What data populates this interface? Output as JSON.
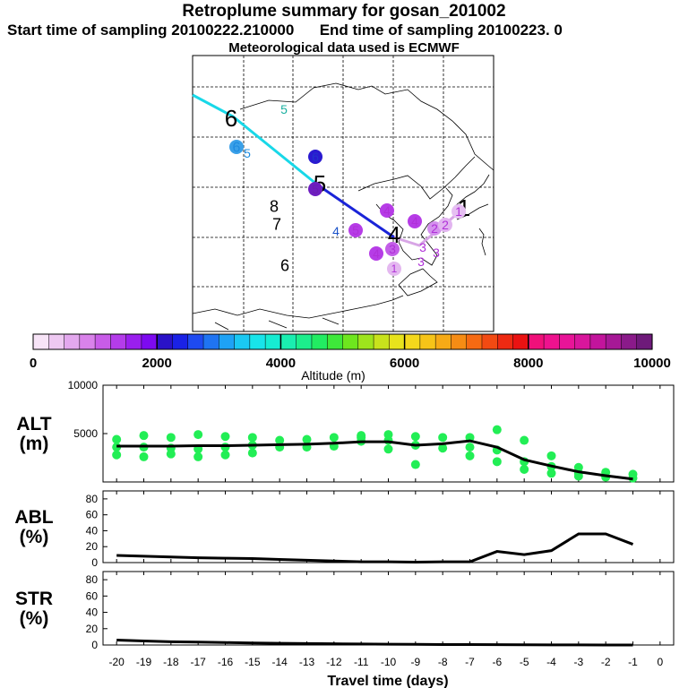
{
  "header": {
    "title": "Retroplume summary for gosan_201002",
    "start_time": "Start time of sampling 20100222.210000",
    "end_time": "End time of sampling 20100223.     0",
    "met_data": "Meteorological data used is ECMWF"
  },
  "colorbar": {
    "label": "Altitude (m)",
    "ticks": [
      "0",
      "2000",
      "4000",
      "6000",
      "8000",
      "10000"
    ],
    "range": [
      0,
      10000
    ],
    "colors": [
      "#f7e4f7",
      "#eec9f2",
      "#e3a8ee",
      "#d982ea",
      "#c85ce8",
      "#b43cea",
      "#9a1fee",
      "#7d0af0",
      "#2a12c8",
      "#1a22e6",
      "#1e4af0",
      "#1f74f2",
      "#1ea2f5",
      "#1ac8f2",
      "#18e4ea",
      "#16ecd2",
      "#1aeeb0",
      "#1cee8c",
      "#22ec62",
      "#3ee83a",
      "#6ee61e",
      "#9ee41c",
      "#c8e21c",
      "#e8e31c",
      "#f4d81c",
      "#f6c418",
      "#f6aa16",
      "#f68c14",
      "#f66a12",
      "#f24a12",
      "#ee2a12",
      "#ea1212",
      "#f0107a",
      "#ee128e",
      "#e81498",
      "#d8169c",
      "#c2149c",
      "#a61896",
      "#8a1a8a",
      "#6e1a7a"
    ]
  },
  "map": {
    "trajectory_colors": [
      "#18d8e8",
      "#1a24d8",
      "#d8a6e6"
    ],
    "markers": [
      {
        "label": "6",
        "color": "#000000",
        "size": "large"
      },
      {
        "label": "5",
        "color": "#1ab0a0",
        "size": "small"
      },
      {
        "label": "6",
        "color": "#1e8ce0",
        "size": "small",
        "marker": "#3aa0e8"
      },
      {
        "label": "5",
        "color": "#1e8ce0",
        "size": "small"
      },
      {
        "label": "6",
        "color": "#2233cc",
        "size": "small",
        "marker": "#2a1ad0"
      },
      {
        "label": "5",
        "color": "#000000",
        "size": "large"
      },
      {
        "label": "5",
        "color": "#6a1eb0",
        "size": "small",
        "marker": "#6e1ec0"
      },
      {
        "label": "8",
        "color": "#000000",
        "size": "small"
      },
      {
        "label": "7",
        "color": "#000000",
        "size": "small"
      },
      {
        "label": "6",
        "color": "#000000",
        "size": "small"
      },
      {
        "label": "4",
        "color": "#1a52c8",
        "size": "small"
      },
      {
        "label": "5",
        "color": "#b030d8",
        "size": "small",
        "marker": "#b63ce6"
      },
      {
        "label": "4",
        "color": "#b030d8",
        "size": "small",
        "marker": "#b63ce6"
      },
      {
        "label": "4",
        "color": "#b030d8",
        "size": "small",
        "marker": "#b63ce6"
      },
      {
        "label": "4",
        "color": "#000000",
        "size": "large"
      },
      {
        "label": "4",
        "color": "#b030d8",
        "size": "small",
        "marker": "#b63ce6"
      },
      {
        "label": "3",
        "color": "#b030d8",
        "size": "small",
        "marker": "#c35ee8"
      },
      {
        "label": "2",
        "color": "#b030d8",
        "size": "small",
        "marker": "#d490ee"
      },
      {
        "label": "3",
        "color": "#b030d8",
        "size": "small"
      },
      {
        "label": "3",
        "color": "#b030d8",
        "size": "small"
      },
      {
        "label": "3",
        "color": "#b030d8",
        "size": "small"
      },
      {
        "label": "2",
        "color": "#b030d8",
        "size": "small",
        "marker": "#e2b4f0"
      },
      {
        "label": "1",
        "color": "#000000",
        "size": "large"
      },
      {
        "label": "1",
        "color": "#b030d8",
        "size": "small",
        "marker": "#e6bff2"
      },
      {
        "label": "1",
        "color": "#b030d8",
        "size": "small",
        "marker": "#e4b8f0"
      }
    ]
  },
  "chart_data": [
    {
      "type": "scatter+line",
      "name": "ALT",
      "ylabel": "ALT\n(m)",
      "xlabel": "Travel time (days)",
      "xlim": [
        -20.5,
        0.5
      ],
      "ylim": [
        0,
        10000
      ],
      "yticks": [
        "5000",
        "10000"
      ],
      "line": {
        "x": [
          -20,
          -19,
          -18,
          -17,
          -16,
          -15,
          -14,
          -13,
          -12,
          -11,
          -10,
          -9,
          -8,
          -7,
          -6,
          -5,
          -4,
          -3,
          -2,
          -1
        ],
        "y": [
          3700,
          3700,
          3700,
          3750,
          3750,
          3800,
          3850,
          3900,
          4000,
          4150,
          4150,
          3800,
          3950,
          4250,
          3600,
          2300,
          1650,
          1050,
          650,
          300
        ]
      },
      "series": [
        {
          "name": "Particles",
          "color": "#22ee55",
          "x": [
            -20,
            -20,
            -20,
            -19,
            -19,
            -19,
            -18,
            -18,
            -18,
            -17,
            -17,
            -17,
            -16,
            -16,
            -16,
            -15,
            -15,
            -15,
            -14,
            -14,
            -13,
            -13,
            -12,
            -12,
            -11,
            -11,
            -11,
            -10,
            -10,
            -10,
            -9,
            -9,
            -9,
            -8,
            -8,
            -7,
            -7,
            -7,
            -6,
            -6,
            -6,
            -5,
            -5,
            -5,
            -4,
            -4,
            -4,
            -3,
            -3,
            -3,
            -2,
            -2,
            -1,
            -1
          ],
          "y": [
            4400,
            3600,
            2800,
            4800,
            3600,
            2600,
            4600,
            3500,
            2900,
            4900,
            3400,
            2600,
            4700,
            3600,
            2800,
            4600,
            3800,
            3000,
            4300,
            3600,
            4400,
            3600,
            4600,
            3700,
            4800,
            4200,
            4600,
            4900,
            4300,
            3400,
            4700,
            3800,
            1800,
            4600,
            3500,
            4600,
            3600,
            2700,
            5400,
            3300,
            2100,
            4300,
            2100,
            1300,
            2700,
            1600,
            900,
            1500,
            900,
            600,
            1000,
            500,
            800,
            400
          ]
        }
      ]
    },
    {
      "type": "line",
      "name": "ABL",
      "ylabel": "ABL\n(%)",
      "xlim": [
        -20.5,
        0.5
      ],
      "ylim": [
        0,
        90
      ],
      "yticks": [
        "0",
        "20",
        "40",
        "60",
        "80"
      ],
      "x": [
        -20,
        -19,
        -18,
        -17,
        -16,
        -15,
        -14,
        -13,
        -12,
        -11,
        -10,
        -9,
        -8,
        -7,
        -6,
        -5,
        -4,
        -3,
        -2,
        -1
      ],
      "values": [
        9,
        8,
        7,
        6,
        5.5,
        5,
        4,
        3,
        2,
        1,
        1,
        0.5,
        1,
        1,
        14,
        10,
        15,
        36,
        36,
        23
      ]
    },
    {
      "type": "line",
      "name": "STR",
      "ylabel": "STR\n(%)",
      "xlim": [
        -20.5,
        0.5
      ],
      "ylim": [
        0,
        90
      ],
      "yticks": [
        "0",
        "20",
        "40",
        "60",
        "80"
      ],
      "x": [
        -20,
        -19,
        -18,
        -17,
        -16,
        -15,
        -14,
        -13,
        -12,
        -11,
        -10,
        -9,
        -8,
        -7,
        -6,
        -5,
        -4,
        -3,
        -2,
        -1
      ],
      "values": [
        6,
        5,
        4,
        3.5,
        3,
        2.5,
        2,
        1.8,
        1.5,
        1.2,
        1,
        0.8,
        0.6,
        0.5,
        0.4,
        0.3,
        0.2,
        0.1,
        0,
        0
      ],
      "xticks": [
        "-20",
        "-19",
        "-18",
        "-17",
        "-16",
        "-15",
        "-14",
        "-13",
        "-12",
        "-11",
        "-10",
        "-9",
        "-8",
        "-7",
        "-6",
        "-5",
        "-4",
        "-3",
        "-2",
        "-1",
        "0"
      ]
    }
  ]
}
